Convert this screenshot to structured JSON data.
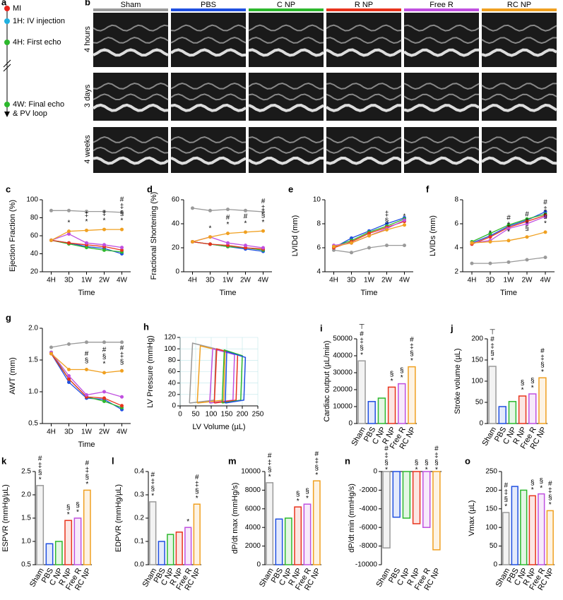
{
  "timeline": {
    "label": "a",
    "events": [
      [
        "MI"
      ],
      [
        "1H: IV injection"
      ],
      [
        "4H: First echo"
      ],
      [
        "4W: Final echo",
        "& PV loop"
      ]
    ],
    "colors": [
      "#e8231c",
      "#1fb0e0",
      "#2db82d",
      "#2db82d"
    ]
  },
  "echo": {
    "label": "b",
    "groups": [
      {
        "name": "Sham",
        "color": "#9a9a9a"
      },
      {
        "name": "PBS",
        "color": "#1f4fe0"
      },
      {
        "name": "C NP",
        "color": "#2db82d"
      },
      {
        "name": "R NP",
        "color": "#e8331c"
      },
      {
        "name": "Free R",
        "color": "#c050e0"
      },
      {
        "name": "RC NP",
        "color": "#f0a020"
      }
    ],
    "rows": [
      "4 hours",
      "3 days",
      "4 weeks"
    ]
  },
  "chart_data": [
    {
      "type": "line",
      "label": "c",
      "ylabel": "Ejection Fraction (%)",
      "xlabel": "Time",
      "categories": [
        "4H",
        "3D",
        "1W",
        "2W",
        "4W"
      ],
      "ylim": [
        20,
        100
      ],
      "yticks": [
        20,
        40,
        60,
        80,
        100
      ],
      "series": [
        {
          "name": "Sham",
          "color": "#9a9a9a",
          "values": [
            88,
            88,
            87,
            87,
            86
          ]
        },
        {
          "name": "PBS",
          "color": "#1f4fe0",
          "values": [
            55,
            52,
            48,
            46,
            40
          ]
        },
        {
          "name": "C NP",
          "color": "#2db82d",
          "values": [
            55,
            51,
            47,
            44,
            42
          ]
        },
        {
          "name": "R NP",
          "color": "#e8331c",
          "values": [
            55,
            52,
            50,
            48,
            44
          ]
        },
        {
          "name": "Free R",
          "color": "#c050e0",
          "values": [
            55,
            62,
            52,
            50,
            47
          ]
        },
        {
          "name": "RC NP",
          "color": "#f0a020",
          "values": [
            55,
            65,
            66,
            67,
            67
          ],
          "annotations": [
            null,
            [
              "*"
            ],
            [
              "‡",
              "*"
            ],
            [
              "‡",
              "*"
            ],
            [
              "#",
              "‡",
              "§",
              "*"
            ]
          ]
        }
      ]
    },
    {
      "type": "line",
      "label": "d",
      "ylabel": "Fractional Shortening (%)",
      "xlabel": "Time",
      "categories": [
        "4H",
        "3D",
        "1W",
        "2W",
        "4W"
      ],
      "ylim": [
        0,
        60
      ],
      "yticks": [
        0,
        20,
        40,
        60
      ],
      "series": [
        {
          "name": "Sham",
          "color": "#9a9a9a",
          "values": [
            53,
            51,
            52,
            51,
            50
          ]
        },
        {
          "name": "PBS",
          "color": "#1f4fe0",
          "values": [
            25,
            23,
            21,
            19,
            17
          ]
        },
        {
          "name": "C NP",
          "color": "#2db82d",
          "values": [
            25,
            23,
            21,
            20,
            18
          ]
        },
        {
          "name": "R NP",
          "color": "#e8331c",
          "values": [
            25,
            23,
            22,
            20,
            19
          ]
        },
        {
          "name": "Free R",
          "color": "#c050e0",
          "values": [
            25,
            29,
            24,
            22,
            20
          ]
        },
        {
          "name": "RC NP",
          "color": "#f0a020",
          "values": [
            25,
            29,
            32,
            33,
            34
          ],
          "annotations": [
            null,
            [
              "*"
            ],
            [
              "#",
              "*"
            ],
            [
              "#",
              "*"
            ],
            [
              "#",
              "‡",
              "§",
              "*"
            ]
          ]
        }
      ]
    },
    {
      "type": "line",
      "label": "e",
      "ylabel": "LVIDd (mm)",
      "xlabel": "Time",
      "categories": [
        "4H",
        "3D",
        "1W",
        "2W",
        "4W"
      ],
      "ylim": [
        4,
        10
      ],
      "yticks": [
        4,
        6,
        8,
        10
      ],
      "series": [
        {
          "name": "Sham",
          "color": "#9a9a9a",
          "values": [
            5.8,
            5.6,
            6.0,
            6.2,
            6.2
          ]
        },
        {
          "name": "PBS",
          "color": "#1f4fe0",
          "values": [
            6.0,
            6.8,
            7.4,
            8.0,
            8.5
          ]
        },
        {
          "name": "C NP",
          "color": "#2db82d",
          "values": [
            6.1,
            6.6,
            7.3,
            7.8,
            8.4
          ]
        },
        {
          "name": "R NP",
          "color": "#e8331c",
          "values": [
            6.0,
            6.5,
            7.2,
            7.7,
            8.2
          ]
        },
        {
          "name": "Free R",
          "color": "#c050e0",
          "values": [
            6.2,
            6.4,
            7.0,
            7.6,
            8.3
          ]
        },
        {
          "name": "RC NP",
          "color": "#f0a020",
          "values": [
            6.1,
            6.4,
            7.0,
            7.5,
            7.9
          ],
          "annotations": [
            null,
            null,
            null,
            [
              "‡",
              "§"
            ],
            [
              "*"
            ]
          ]
        }
      ]
    },
    {
      "type": "line",
      "label": "f",
      "ylabel": "LVIDs (mm)",
      "xlabel": "Time",
      "categories": [
        "4H",
        "3D",
        "1W",
        "2W",
        "4W"
      ],
      "ylim": [
        2,
        8
      ],
      "yticks": [
        2,
        4,
        6,
        8
      ],
      "series": [
        {
          "name": "Sham",
          "color": "#9a9a9a",
          "values": [
            2.7,
            2.7,
            2.8,
            3.0,
            3.2
          ]
        },
        {
          "name": "PBS",
          "color": "#1f4fe0",
          "values": [
            4.4,
            5.0,
            5.8,
            6.3,
            7.0
          ]
        },
        {
          "name": "C NP",
          "color": "#2db82d",
          "values": [
            4.5,
            5.2,
            5.9,
            6.4,
            6.8
          ]
        },
        {
          "name": "R NP",
          "color": "#e8331c",
          "values": [
            4.3,
            4.9,
            5.7,
            6.2,
            6.7
          ]
        },
        {
          "name": "Free R",
          "color": "#c050e0",
          "values": [
            4.4,
            4.6,
            5.6,
            6.0,
            6.6
          ]
        },
        {
          "name": "RC NP",
          "color": "#f0a020",
          "values": [
            4.4,
            4.5,
            4.6,
            4.9,
            5.3
          ],
          "annotations": [
            null,
            [
              "*"
            ],
            [
              "#",
              "‡",
              "*"
            ],
            [
              "#",
              "‡",
              "§"
            ],
            [
              "#",
              "‡",
              "§",
              "*"
            ]
          ]
        }
      ]
    },
    {
      "type": "line",
      "label": "g",
      "ylabel": "AWT (mm)",
      "xlabel": "Time",
      "categories": [
        "4H",
        "3D",
        "1W",
        "2W",
        "4W"
      ],
      "ylim": [
        0.5,
        2.0
      ],
      "yticks": [
        0.5,
        {
          "value": 1.0,
          "label": "1.0"
        },
        1.5,
        {
          "value": 2.0,
          "label": "2.0"
        }
      ],
      "series": [
        {
          "name": "Sham",
          "color": "#9a9a9a",
          "values": [
            1.7,
            1.75,
            1.78,
            1.78,
            1.78
          ]
        },
        {
          "name": "PBS",
          "color": "#1f4fe0",
          "values": [
            1.6,
            1.15,
            0.9,
            0.88,
            0.72
          ]
        },
        {
          "name": "C NP",
          "color": "#2db82d",
          "values": [
            1.62,
            1.2,
            0.92,
            0.85,
            0.75
          ]
        },
        {
          "name": "R NP",
          "color": "#e8331c",
          "values": [
            1.6,
            1.2,
            0.92,
            0.9,
            0.78
          ]
        },
        {
          "name": "Free R",
          "color": "#c050e0",
          "values": [
            1.62,
            1.25,
            0.95,
            1.0,
            0.92
          ]
        },
        {
          "name": "RC NP",
          "color": "#f0a020",
          "values": [
            1.6,
            1.35,
            1.35,
            1.3,
            1.33
          ],
          "annotations": [
            null,
            null,
            [
              "#",
              "§"
            ],
            [
              "#",
              "§",
              "*"
            ],
            [
              "#",
              "‡",
              "§"
            ]
          ]
        }
      ]
    },
    {
      "type": "loop",
      "label": "h",
      "ylabel": "LV Pressure (mmHg)",
      "xlabel": "LV Volume (µL)",
      "xlim": [
        0,
        250
      ],
      "xticks": [
        0,
        50,
        100,
        150,
        200,
        250
      ],
      "ylim": [
        0,
        120
      ],
      "yticks": [
        0,
        20,
        40,
        60,
        80,
        100,
        120
      ],
      "grid": true,
      "series": [
        {
          "name": "Sham",
          "color": "#9a9a9a",
          "x": [
            30,
            110,
            115,
            40,
            30
          ],
          "values": [
            5,
            10,
            100,
            110,
            5
          ]
        },
        {
          "name": "RC NP",
          "color": "#f0a020",
          "x": [
            55,
            140,
            145,
            65,
            55
          ],
          "values": [
            5,
            10,
            95,
            105,
            5
          ]
        },
        {
          "name": "Free R",
          "color": "#c050e0",
          "x": [
            95,
            170,
            175,
            105,
            95
          ],
          "values": [
            5,
            10,
            90,
            100,
            5
          ]
        },
        {
          "name": "R NP",
          "color": "#e8331c",
          "x": [
            110,
            180,
            185,
            118,
            110
          ],
          "values": [
            5,
            10,
            90,
            100,
            5
          ]
        },
        {
          "name": "C NP",
          "color": "#2db82d",
          "x": [
            135,
            195,
            200,
            142,
            135
          ],
          "values": [
            5,
            10,
            88,
            98,
            5
          ]
        },
        {
          "name": "PBS",
          "color": "#1f4fe0",
          "x": [
            145,
            205,
            210,
            150,
            145
          ],
          "values": [
            5,
            10,
            85,
            95,
            5
          ]
        }
      ]
    },
    {
      "type": "bar",
      "label": "i",
      "ylabel": "Cardiac output (µL/min)",
      "categories": [
        "Sham",
        "PBS",
        "C NP",
        "R NP",
        "Free R",
        "RC NP"
      ],
      "colors": [
        "#9a9a9a",
        "#1f4fe0",
        "#2db82d",
        "#e8331c",
        "#c050e0",
        "#f0a020"
      ],
      "ylim": [
        0,
        50000
      ],
      "yticks": [
        0,
        10000,
        20000,
        30000,
        40000,
        50000
      ],
      "values": [
        37000,
        13000,
        15000,
        21500,
        23500,
        33500
      ],
      "annotations": [
        [
          "⊤",
          "#",
          "‡",
          "§",
          "*"
        ],
        [],
        [],
        [
          "§",
          "*"
        ],
        [
          "§",
          "*"
        ],
        [
          "#",
          "‡",
          "§",
          "*"
        ]
      ]
    },
    {
      "type": "bar",
      "label": "j",
      "ylabel": "Stroke volume (µL)",
      "categories": [
        "Sham",
        "PBS",
        "C NP",
        "R NP",
        "Free R",
        "RC NP"
      ],
      "colors": [
        "#9a9a9a",
        "#1f4fe0",
        "#2db82d",
        "#e8331c",
        "#c050e0",
        "#f0a020"
      ],
      "ylim": [
        0,
        200
      ],
      "yticks": [
        0,
        50,
        100,
        150,
        200
      ],
      "values": [
        135,
        40,
        52,
        65,
        70,
        108
      ],
      "annotations": [
        [
          "⊤",
          "#",
          "‡",
          "§",
          "*"
        ],
        [],
        [],
        [
          "§",
          "*"
        ],
        [
          "§",
          "*"
        ],
        [
          "#",
          "‡",
          "§",
          "*"
        ]
      ]
    },
    {
      "type": "bar",
      "label": "k",
      "ylabel": "ESPVR (mmHg/µL)",
      "categories": [
        "Sham",
        "PBS",
        "C NP",
        "R NP",
        "Free R",
        "RC NP"
      ],
      "colors": [
        "#9a9a9a",
        "#1f4fe0",
        "#2db82d",
        "#e8331c",
        "#c050e0",
        "#f0a020"
      ],
      "ylim": [
        0.5,
        2.5
      ],
      "yticks": [
        0.5,
        {
          "value": 1.0,
          "label": "1.0"
        },
        1.5,
        {
          "value": 2.0,
          "label": "2.0"
        },
        2.5
      ],
      "values": [
        2.2,
        0.95,
        1.0,
        1.45,
        1.5,
        2.1
      ],
      "annotations": [
        [
          "#",
          "‡",
          "§",
          "*"
        ],
        [],
        [],
        [
          "§",
          "*"
        ],
        [
          "§",
          "*"
        ],
        [
          "#",
          "‡",
          "§",
          "*"
        ]
      ]
    },
    {
      "type": "bar",
      "label": "l",
      "ylabel": "EDPVR (mmHg/µL)",
      "categories": [
        "Sham",
        "PBS",
        "C NP",
        "R NP",
        "Free R",
        "RC NP"
      ],
      "colors": [
        "#9a9a9a",
        "#1f4fe0",
        "#2db82d",
        "#e8331c",
        "#c050e0",
        "#f0a020"
      ],
      "ylim": [
        0,
        0.4
      ],
      "yticks": [
        {
          "value": 0,
          "label": "0.0"
        },
        0.1,
        0.2,
        0.3,
        0.4
      ],
      "values": [
        0.27,
        0.1,
        0.13,
        0.14,
        0.16,
        0.26
      ],
      "annotations": [
        [
          "#",
          "‡",
          "§",
          "*"
        ],
        [],
        [],
        [],
        [
          "*"
        ],
        [
          "#",
          "‡",
          "§",
          "*"
        ]
      ]
    },
    {
      "type": "bar",
      "label": "m",
      "ylabel": "dP/dt max (mmHg/s)",
      "categories": [
        "Sham",
        "PBS",
        "C NP",
        "R NP",
        "Free R",
        "RC NP"
      ],
      "colors": [
        "#9a9a9a",
        "#1f4fe0",
        "#2db82d",
        "#e8331c",
        "#c050e0",
        "#f0a020"
      ],
      "ylim": [
        0,
        10000
      ],
      "yticks": [
        0,
        2000,
        4000,
        6000,
        8000,
        10000
      ],
      "values": [
        8800,
        4900,
        5000,
        6200,
        6500,
        9000
      ],
      "annotations": [
        [
          "#",
          "‡",
          "§",
          "*"
        ],
        [],
        [],
        [
          "§",
          "*"
        ],
        [
          "§",
          "*"
        ],
        [
          "#",
          "‡",
          "§",
          "*"
        ]
      ]
    },
    {
      "type": "bar",
      "label": "n",
      "ylabel": "dP/dt min (mmHg/s)",
      "categories": [
        "Sham",
        "PBS",
        "C NP",
        "R NP",
        "Free R",
        "RC NP"
      ],
      "colors": [
        "#9a9a9a",
        "#1f4fe0",
        "#2db82d",
        "#e8331c",
        "#c050e0",
        "#f0a020"
      ],
      "ylim": [
        -10000,
        0
      ],
      "yticks": [
        -10000,
        -8000,
        -6000,
        -4000,
        -2000,
        0
      ],
      "values": [
        -8200,
        -4900,
        -5000,
        -5600,
        -6000,
        -8400
      ],
      "annotations": [
        [
          "#",
          "‡",
          "§",
          "*"
        ],
        [],
        [],
        [
          "§",
          "*"
        ],
        [
          "§",
          "*"
        ],
        [
          "#",
          "‡",
          "§",
          "*"
        ]
      ]
    },
    {
      "type": "bar",
      "label": "o",
      "ylabel": "Vmax (µL)",
      "categories": [
        "Sham",
        "PBS",
        "C NP",
        "R NP",
        "Free R",
        "RC NP"
      ],
      "colors": [
        "#9a9a9a",
        "#1f4fe0",
        "#2db82d",
        "#e8331c",
        "#c050e0",
        "#f0a020"
      ],
      "ylim": [
        0,
        250
      ],
      "yticks": [
        0,
        50,
        100,
        150,
        200,
        250
      ],
      "values": [
        140,
        210,
        200,
        185,
        190,
        145
      ],
      "annotations": [
        [
          "#",
          "‡",
          "§",
          "*"
        ],
        [],
        [],
        [
          "§",
          "*"
        ],
        [
          "§",
          "*"
        ],
        [
          "#",
          "‡",
          "§",
          "*"
        ]
      ]
    }
  ]
}
